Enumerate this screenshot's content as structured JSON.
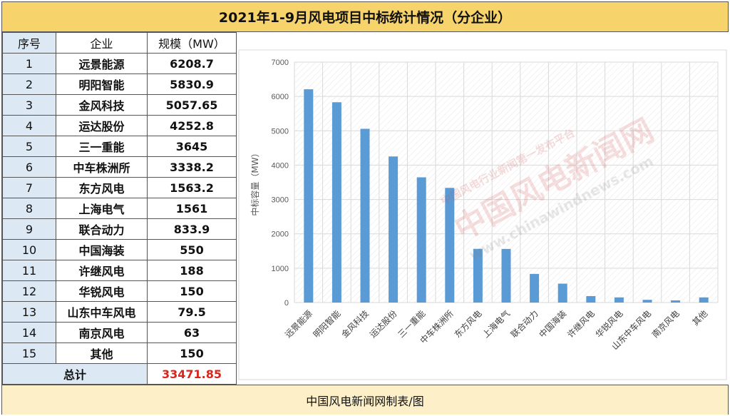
{
  "title": "2021年1-9月风电项目中标统计情况（分企业）",
  "footer": "中国风电新闻网制表/图",
  "table": {
    "headers": [
      "序号",
      "企业",
      "规模（MW）"
    ],
    "rows": [
      {
        "idx": "1",
        "company": "远景能源",
        "value": "6208.7"
      },
      {
        "idx": "2",
        "company": "明阳智能",
        "value": "5830.9"
      },
      {
        "idx": "3",
        "company": "金风科技",
        "value": "5057.65"
      },
      {
        "idx": "4",
        "company": "运达股份",
        "value": "4252.8"
      },
      {
        "idx": "5",
        "company": "三一重能",
        "value": "3645"
      },
      {
        "idx": "6",
        "company": "中车株洲所",
        "value": "3338.2"
      },
      {
        "idx": "7",
        "company": "东方风电",
        "value": "1563.2"
      },
      {
        "idx": "8",
        "company": "上海电气",
        "value": "1561"
      },
      {
        "idx": "9",
        "company": "联合动力",
        "value": "833.9"
      },
      {
        "idx": "10",
        "company": "中国海装",
        "value": "550"
      },
      {
        "idx": "11",
        "company": "许继风电",
        "value": "188"
      },
      {
        "idx": "12",
        "company": "华锐风电",
        "value": "150"
      },
      {
        "idx": "13",
        "company": "山东中车风电",
        "value": "79.5"
      },
      {
        "idx": "14",
        "company": "南京风电",
        "value": "63"
      },
      {
        "idx": "15",
        "company": "其他",
        "value": "150"
      }
    ],
    "total_label": "总计",
    "total_value": "33471.85"
  },
  "watermark": {
    "line1": "中国风电行业新闻第一发布平台",
    "line2": "中国风电新闻网",
    "line3": "www.chinawindnews.com"
  },
  "colors": {
    "bar": "#5b9bd5",
    "header_bg": "#f7d36b",
    "footer_bg": "#fdf0c9",
    "index_bg": "#dce9f5",
    "total_value": "#d9261c"
  },
  "chart_data": {
    "type": "bar",
    "categories": [
      "远景能源",
      "明阳智能",
      "金风科技",
      "运达股份",
      "三一重能",
      "中车株洲所",
      "东方风电",
      "上海电气",
      "联合动力",
      "中国海装",
      "许继风电",
      "华锐风电",
      "山东中车风电",
      "南京风电",
      "其他"
    ],
    "values": [
      6208.7,
      5830.9,
      5057.65,
      4252.8,
      3645,
      3338.2,
      1563.2,
      1561,
      833.9,
      550,
      188,
      150,
      79.5,
      63,
      150
    ],
    "ylabel": "中标容量（MW）",
    "ylim": [
      0,
      7000
    ],
    "yticks": [
      0,
      1000,
      2000,
      3000,
      4000,
      5000,
      6000,
      7000
    ],
    "grid": true
  }
}
